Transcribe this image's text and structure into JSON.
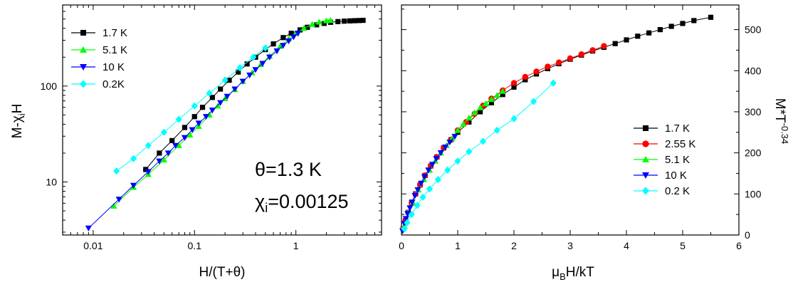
{
  "chart_data": [
    {
      "type": "scatter",
      "xscale": "log",
      "yscale": "log",
      "xlim": [
        0.005,
        7
      ],
      "ylim": [
        2.8,
        700
      ],
      "xticks": [
        "0.01",
        "0.1",
        "1"
      ],
      "yticks": [
        "10",
        "100"
      ],
      "xlabel": {
        "pre": "H/(T+",
        "greek": "θ",
        "post": ")"
      },
      "ylabel": {
        "pre": "M-",
        "greek": "χ",
        "sub": "i",
        "post": "H"
      },
      "annotations": [
        {
          "greek": "θ",
          "text": "=1.3 K"
        },
        {
          "greek": "χ",
          "sub": "i",
          "text": "=0.00125"
        }
      ],
      "legend_position": "top-left",
      "series": [
        {
          "name": "1.7 K",
          "color": "#000000",
          "marker": "square",
          "x": [
            0.033,
            0.045,
            0.06,
            0.08,
            0.1,
            0.12,
            0.15,
            0.18,
            0.22,
            0.27,
            0.33,
            0.4,
            0.5,
            0.6,
            0.75,
            0.9,
            1.1,
            1.3,
            1.6,
            1.9,
            2.2,
            2.6,
            3.0,
            3.4,
            3.8,
            4.2,
            4.6
          ],
          "y": [
            13.5,
            20,
            27,
            37,
            48,
            60,
            76,
            93,
            115,
            140,
            170,
            200,
            240,
            275,
            320,
            355,
            385,
            410,
            435,
            450,
            462,
            470,
            475,
            478,
            480,
            482,
            484
          ]
        },
        {
          "name": "5.1 K",
          "color": "#00ff00",
          "marker": "triangle-up",
          "x": [
            0.016,
            0.025,
            0.035,
            0.05,
            0.07,
            0.09,
            0.11,
            0.14,
            0.17,
            0.2,
            0.25,
            0.3,
            0.37,
            0.45,
            0.55,
            0.7,
            0.85,
            1.0,
            1.2,
            1.45,
            1.7,
            2.0,
            2.2
          ],
          "y": [
            5.6,
            8.8,
            12,
            17,
            24,
            31,
            38,
            50,
            62,
            74,
            92,
            112,
            138,
            168,
            205,
            260,
            310,
            355,
            400,
            440,
            465,
            480,
            485
          ]
        },
        {
          "name": "10 K",
          "color": "#0000ff",
          "marker": "triangle-down",
          "x": [
            0.009,
            0.018,
            0.025,
            0.035,
            0.045,
            0.055,
            0.065,
            0.08,
            0.095,
            0.11,
            0.13,
            0.15,
            0.18,
            0.21,
            0.25,
            0.3,
            0.35,
            0.4,
            0.47,
            0.55,
            0.65,
            0.75,
            0.85,
            0.95,
            1.05
          ],
          "y": [
            3.3,
            6.6,
            9.2,
            12.8,
            16.5,
            20,
            24,
            29,
            35,
            41,
            48,
            56,
            67,
            78,
            93,
            112,
            130,
            148,
            172,
            200,
            232,
            265,
            295,
            325,
            355
          ]
        },
        {
          "name": "0.2K",
          "color": "#00ffff",
          "marker": "diamond",
          "x": [
            0.017,
            0.025,
            0.035,
            0.05,
            0.07,
            0.1,
            0.14,
            0.2,
            0.28,
            0.38,
            0.5
          ],
          "y": [
            13,
            17.5,
            24,
            33,
            45,
            62,
            84,
            115,
            155,
            200,
            250
          ]
        }
      ]
    },
    {
      "type": "scatter",
      "xlim": [
        0,
        6
      ],
      "ylim": [
        0,
        560
      ],
      "xticks": [
        "0",
        "1",
        "2",
        "3",
        "4",
        "5",
        "6"
      ],
      "yticks": [
        "0",
        "100",
        "200",
        "300",
        "400",
        "500"
      ],
      "xlabel": {
        "pre": "μ",
        "sub": "B",
        "post": "H/kT"
      },
      "ylabel": {
        "pre": "M*T",
        "sup": "-0.34"
      },
      "legend_position": "right",
      "series": [
        {
          "name": "1.7 K",
          "color": "#000000",
          "marker": "square",
          "x": [
            0.03,
            0.07,
            0.12,
            0.18,
            0.25,
            0.33,
            0.42,
            0.52,
            0.63,
            0.75,
            0.88,
            1.0,
            1.2,
            1.4,
            1.6,
            1.8,
            2.0,
            2.2,
            2.4,
            2.6,
            2.8,
            3.0,
            3.2,
            3.4,
            3.6,
            3.8,
            4.0,
            4.2,
            4.4,
            4.6,
            4.8,
            5.0,
            5.2,
            5.5
          ],
          "y": [
            15,
            35,
            55,
            78,
            100,
            122,
            145,
            168,
            190,
            212,
            232,
            250,
            275,
            300,
            322,
            342,
            360,
            378,
            392,
            405,
            417,
            428,
            438,
            448,
            457,
            466,
            475,
            484,
            492,
            500,
            508,
            515,
            522,
            530
          ]
        },
        {
          "name": "2.55 K",
          "color": "#ff0000",
          "marker": "circle",
          "x": [
            0.03,
            0.07,
            0.12,
            0.18,
            0.25,
            0.33,
            0.42,
            0.52,
            0.63,
            0.75,
            0.88,
            1.0,
            1.15,
            1.3,
            1.45,
            1.6,
            1.8,
            2.0,
            2.2,
            2.4,
            2.6,
            2.8,
            3.0,
            3.2,
            3.4,
            3.6
          ],
          "y": [
            15,
            35,
            55,
            78,
            100,
            122,
            145,
            168,
            190,
            212,
            232,
            255,
            275,
            295,
            315,
            332,
            352,
            370,
            385,
            398,
            410,
            420,
            430,
            440,
            450,
            460
          ]
        },
        {
          "name": "5.1 K",
          "color": "#00ff00",
          "marker": "triangle-up",
          "x": [
            0.05,
            0.12,
            0.2,
            0.3,
            0.4,
            0.5,
            0.6,
            0.7,
            0.8,
            0.9,
            1.0,
            1.1,
            1.2,
            1.3,
            1.4,
            1.5,
            1.6,
            1.7,
            1.8
          ],
          "y": [
            22,
            55,
            80,
            110,
            135,
            158,
            180,
            200,
            218,
            235,
            255,
            270,
            285,
            298,
            310,
            320,
            330,
            340,
            350
          ]
        },
        {
          "name": "10 K",
          "color": "#0000ff",
          "marker": "triangle-down",
          "x": [
            0.02,
            0.05,
            0.08,
            0.11,
            0.15,
            0.19,
            0.24,
            0.29,
            0.35,
            0.41,
            0.48,
            0.55,
            0.62,
            0.7,
            0.78,
            0.86,
            0.95
          ],
          "y": [
            10,
            28,
            40,
            52,
            66,
            80,
            96,
            110,
            126,
            142,
            158,
            172,
            186,
            200,
            214,
            226,
            240
          ]
        },
        {
          "name": "0.2 K",
          "color": "#00ffff",
          "marker": "diamond",
          "x": [
            0.05,
            0.1,
            0.18,
            0.28,
            0.38,
            0.5,
            0.65,
            0.82,
            1.0,
            1.2,
            1.45,
            1.7,
            2.0,
            2.35,
            2.7
          ],
          "y": [
            15,
            30,
            50,
            72,
            92,
            112,
            135,
            158,
            180,
            203,
            228,
            255,
            283,
            325,
            370
          ]
        }
      ]
    }
  ]
}
